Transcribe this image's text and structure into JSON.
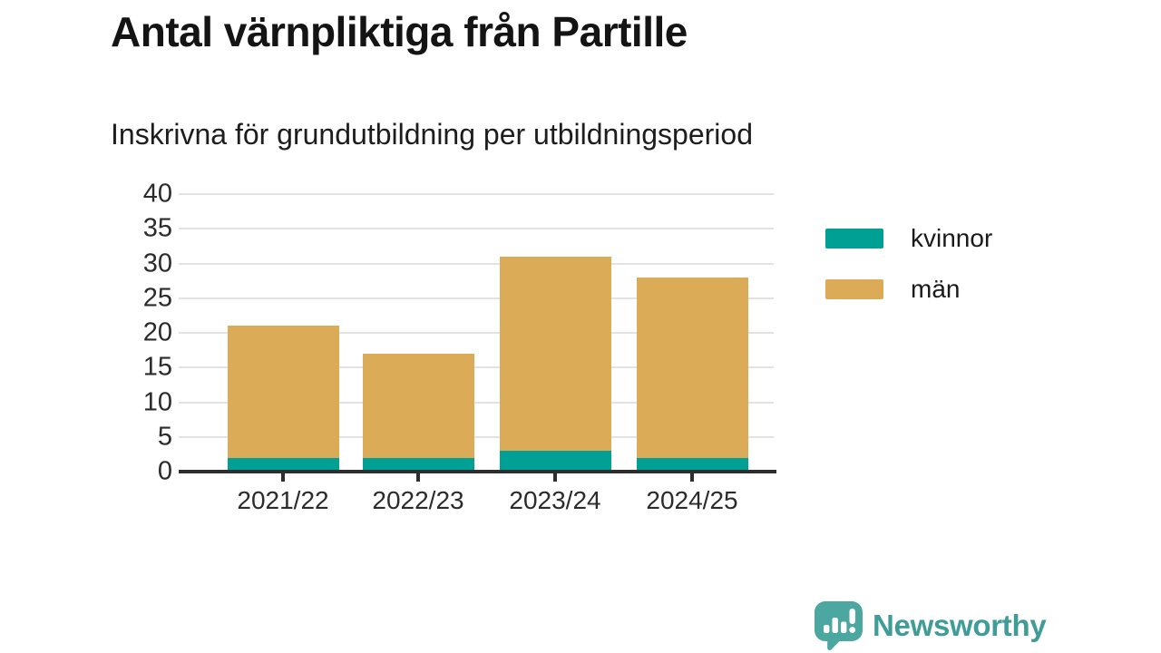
{
  "header": {
    "title": "Antal värnpliktiga från Partille",
    "subtitle": "Inskrivna för grundutbildning per utbildningsperiod"
  },
  "chart_data": {
    "type": "bar",
    "stacked": true,
    "title": "Antal värnpliktiga från Partille",
    "subtitle": "Inskrivna för grundutbildning per utbildningsperiod",
    "categories": [
      "2021/22",
      "2022/23",
      "2023/24",
      "2024/25"
    ],
    "series": [
      {
        "name": "kvinnor",
        "color": "#00A094",
        "values": [
          2,
          2,
          3,
          2
        ]
      },
      {
        "name": "män",
        "color": "#DBAB58",
        "values": [
          19,
          15,
          28,
          26
        ]
      }
    ],
    "stack_totals": [
      21,
      17,
      31,
      28
    ],
    "xlabel": "",
    "ylabel": "",
    "ylim": [
      0,
      40
    ],
    "yticks": [
      0,
      5,
      10,
      15,
      20,
      25,
      30,
      35,
      40
    ],
    "grid": true,
    "legend_position": "right"
  },
  "colors": {
    "kvinnor": "#00A094",
    "man": "#DBAB58",
    "axis": "#2E2E2E",
    "gridline": "#E2E2E2",
    "brand_teal": "#3F9C97"
  },
  "footer": {
    "brand": "Newsworthy"
  }
}
